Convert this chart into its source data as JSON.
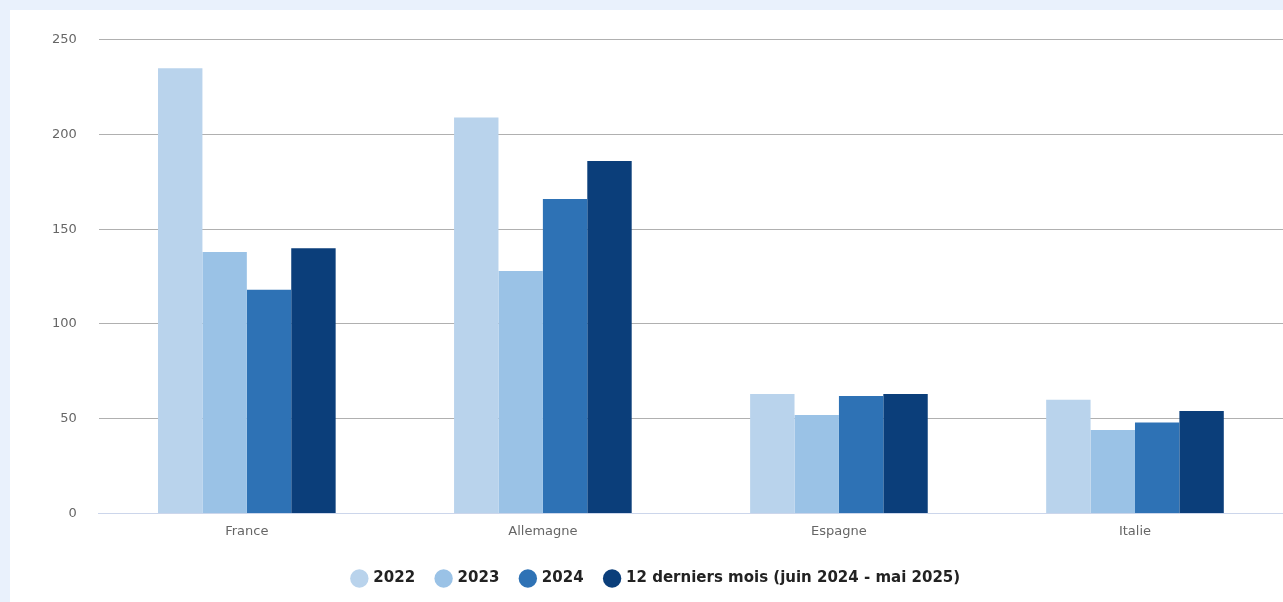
{
  "chart_data": {
    "type": "bar",
    "categories": [
      "France",
      "Allemagne",
      "Espagne",
      "Italie"
    ],
    "series": [
      {
        "name": "2022",
        "color": "#b9d3ec",
        "values": [
          235,
          209,
          63,
          60
        ]
      },
      {
        "name": "2023",
        "color": "#9ac2e6",
        "values": [
          138,
          128,
          52,
          44
        ]
      },
      {
        "name": "2024",
        "color": "#2e72b5",
        "values": [
          118,
          166,
          62,
          48
        ]
      },
      {
        "name": "12 derniers mois (juin 2024 - mai 2025)",
        "color": "#0b3e7a",
        "values": [
          140,
          186,
          63,
          54
        ]
      }
    ],
    "ylim": [
      0,
      250
    ],
    "yticks": [
      0,
      50,
      100,
      150,
      200,
      250
    ],
    "grid": "y",
    "legend": "bottom"
  }
}
